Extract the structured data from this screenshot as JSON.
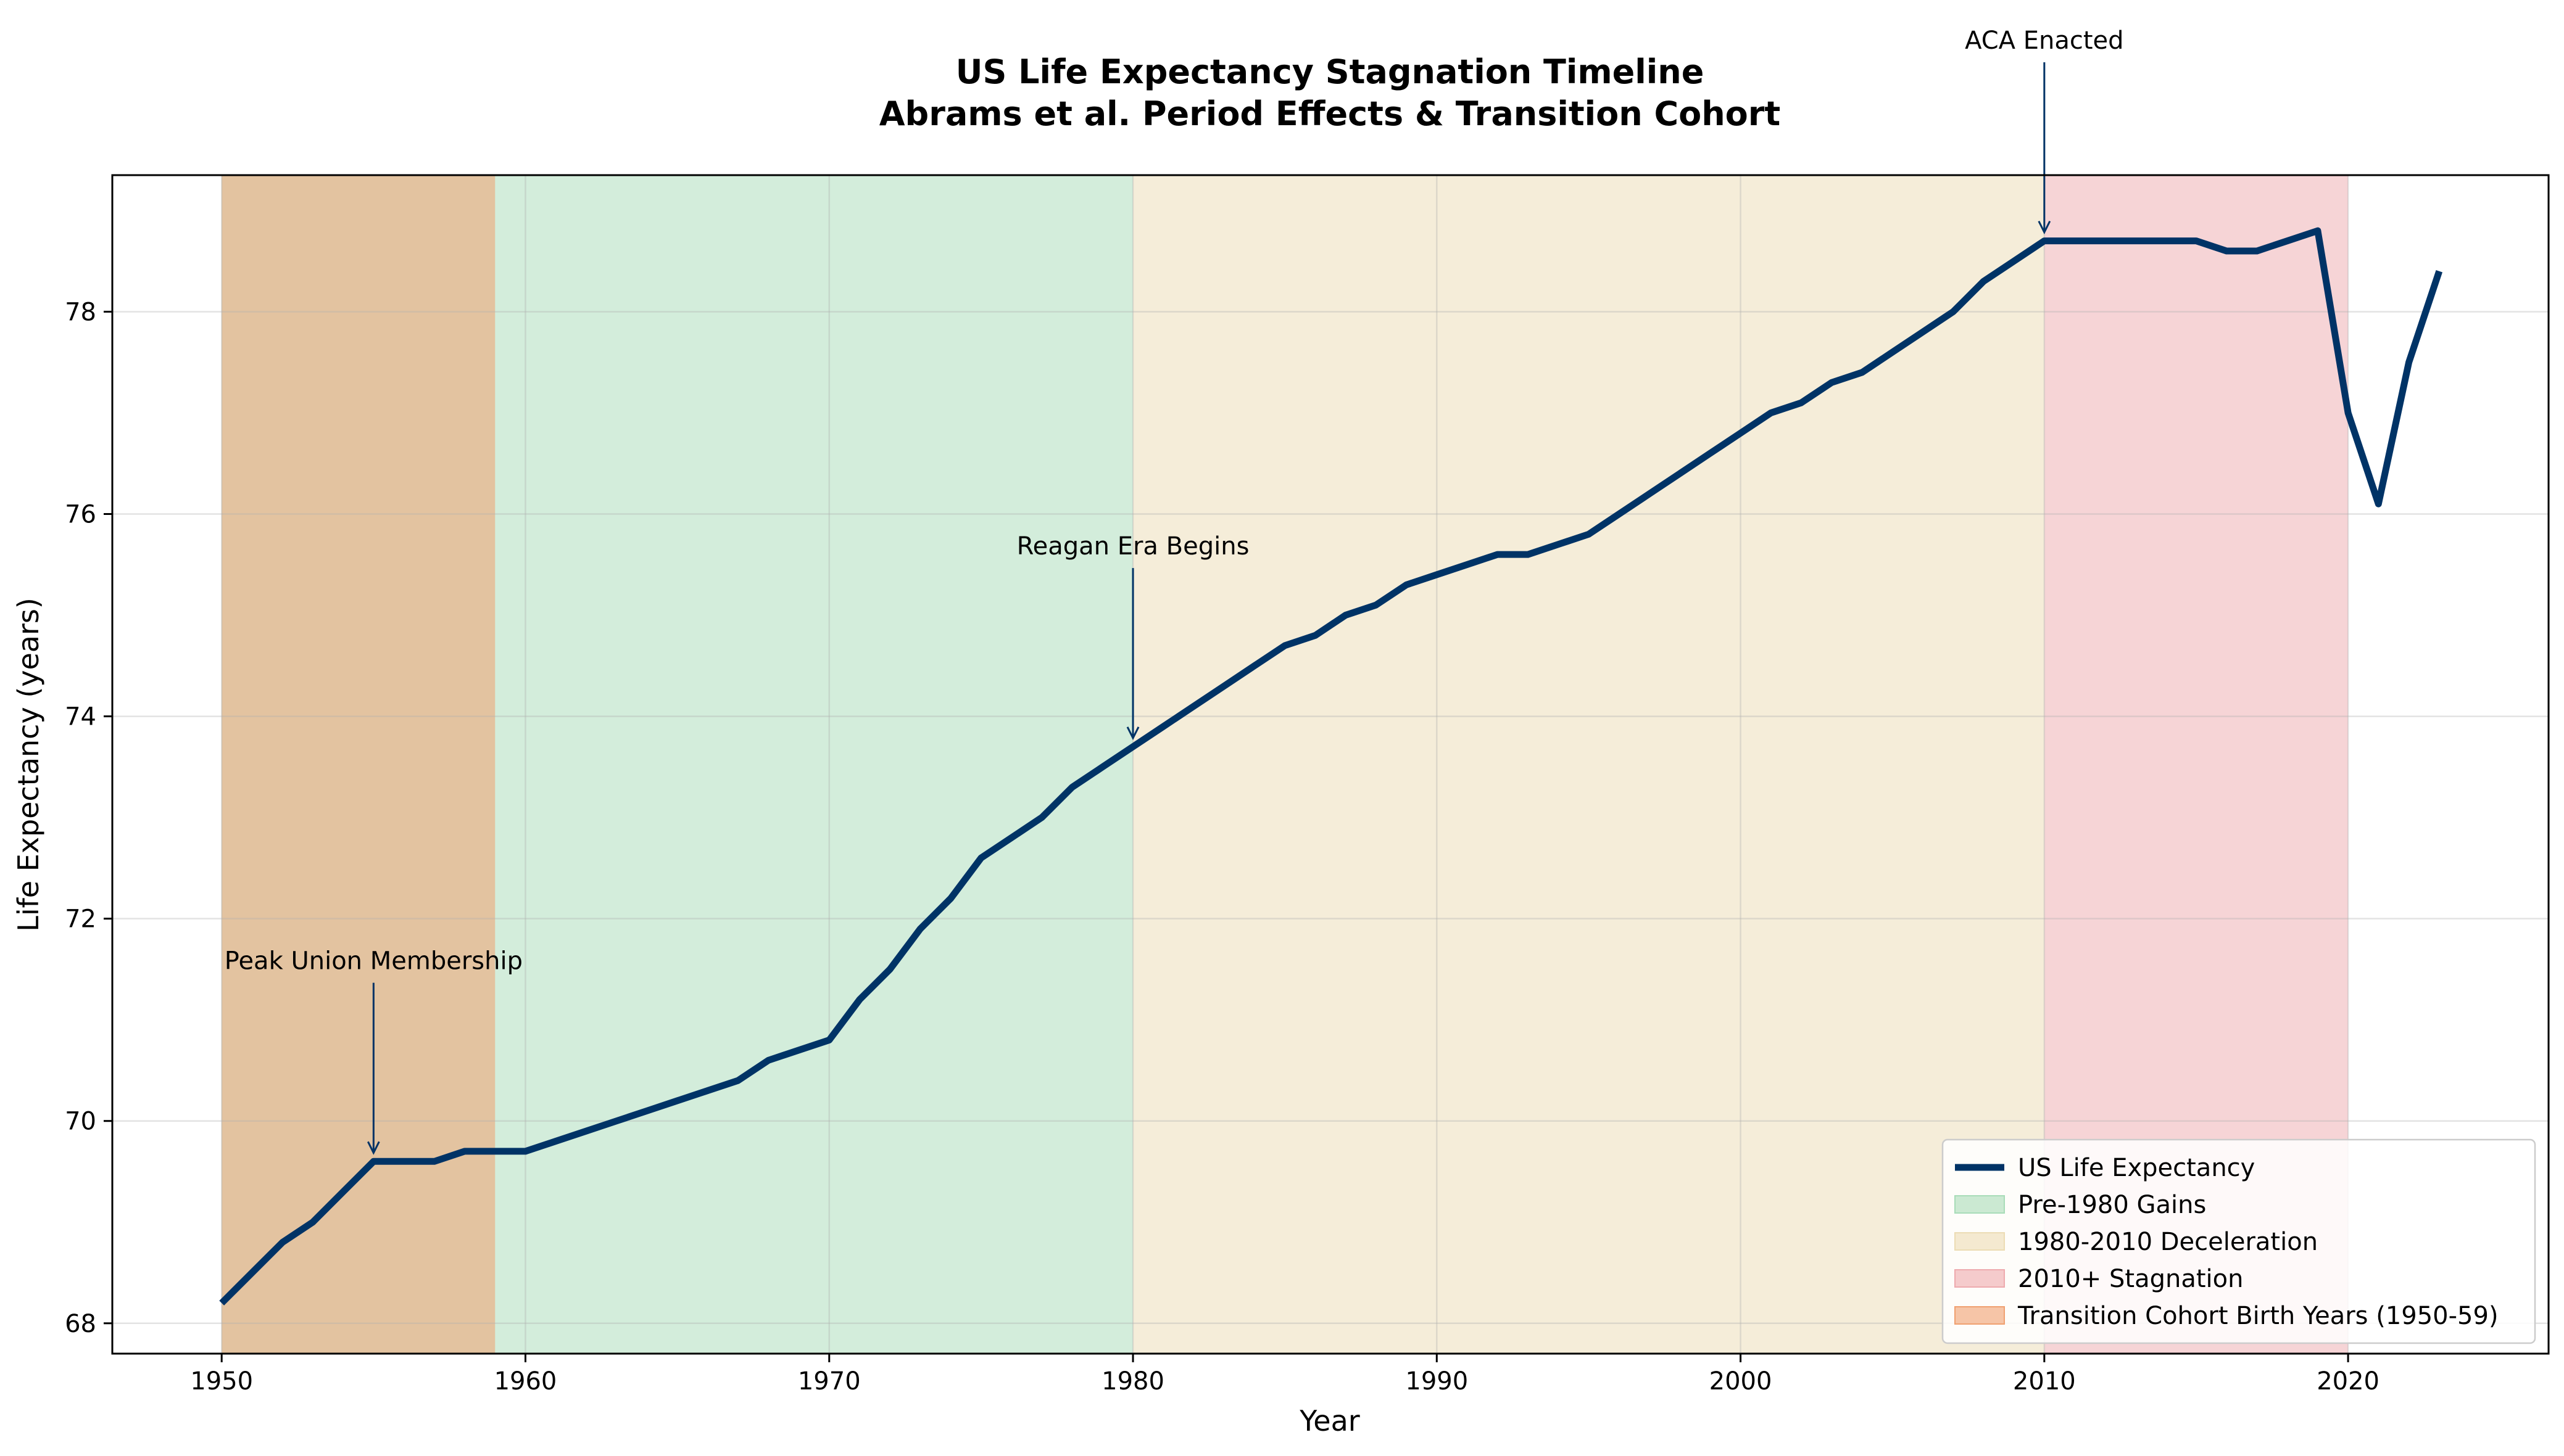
{
  "chart_data": {
    "type": "line",
    "title_line1": "US Life Expectancy Stagnation Timeline",
    "title_line2": "Abrams et al. Period Effects & Transition Cohort",
    "xlabel": "Year",
    "ylabel": "Life Expectancy (years)",
    "xlim": [
      1946.4,
      2026.6
    ],
    "ylim": [
      67.7,
      79.35
    ],
    "xticks": [
      1950,
      1960,
      1970,
      1980,
      1990,
      2000,
      2010,
      2020
    ],
    "yticks": [
      68,
      70,
      72,
      74,
      76,
      78
    ],
    "grid": true,
    "legend_position": "lower-right",
    "series": [
      {
        "name": "US Life Expectancy",
        "color": "#003366",
        "x": [
          1950,
          1951,
          1952,
          1953,
          1954,
          1955,
          1956,
          1957,
          1958,
          1959,
          1960,
          1961,
          1962,
          1963,
          1964,
          1965,
          1966,
          1967,
          1968,
          1969,
          1970,
          1971,
          1972,
          1973,
          1974,
          1975,
          1976,
          1977,
          1978,
          1979,
          1980,
          1981,
          1982,
          1983,
          1984,
          1985,
          1986,
          1987,
          1988,
          1989,
          1990,
          1991,
          1992,
          1993,
          1994,
          1995,
          1996,
          1997,
          1998,
          1999,
          2000,
          2001,
          2002,
          2003,
          2004,
          2005,
          2006,
          2007,
          2008,
          2009,
          2010,
          2011,
          2012,
          2013,
          2014,
          2015,
          2016,
          2017,
          2018,
          2019,
          2020,
          2021,
          2022,
          2023
        ],
        "y": [
          68.2,
          68.5,
          68.8,
          69.0,
          69.3,
          69.6,
          69.6,
          69.6,
          69.7,
          69.7,
          69.7,
          69.8,
          69.9,
          70.0,
          70.1,
          70.2,
          70.3,
          70.4,
          70.6,
          70.7,
          70.8,
          71.2,
          71.5,
          71.9,
          72.2,
          72.6,
          72.8,
          73.0,
          73.3,
          73.5,
          73.7,
          73.9,
          74.1,
          74.3,
          74.5,
          74.7,
          74.8,
          75.0,
          75.1,
          75.3,
          75.4,
          75.5,
          75.6,
          75.6,
          75.7,
          75.8,
          76.0,
          76.2,
          76.4,
          76.6,
          76.8,
          77.0,
          77.1,
          77.3,
          77.4,
          77.6,
          77.8,
          78.0,
          78.3,
          78.5,
          78.7,
          78.7,
          78.7,
          78.7,
          78.7,
          78.7,
          78.6,
          78.6,
          78.7,
          78.8,
          77.0,
          76.1,
          77.5,
          78.4
        ]
      }
    ],
    "shaded_regions": [
      {
        "name": "Pre-1980 Gains",
        "x0": 1950,
        "x1": 1980,
        "color": "#a8dcb8"
      },
      {
        "name": "1980-2010 Deceleration",
        "x0": 1980,
        "x1": 2010,
        "color": "#ecdcb4"
      },
      {
        "name": "2010+ Stagnation",
        "x0": 2010,
        "x1": 2020,
        "color": "#eeaaae"
      },
      {
        "name": "Transition Cohort Birth Years (1950-59)",
        "x0": 1950,
        "x1": 1959,
        "color": "#f0a070"
      }
    ],
    "annotations": [
      {
        "text": "Peak Union Membership",
        "x": 1955,
        "y": 69.6,
        "text_y": 71.5
      },
      {
        "text": "Reagan Era Begins",
        "x": 1980,
        "y": 73.7,
        "text_y": 75.6
      },
      {
        "text": "ACA Enacted",
        "x": 2010,
        "y": 78.7,
        "text_y": 80.6
      }
    ]
  }
}
